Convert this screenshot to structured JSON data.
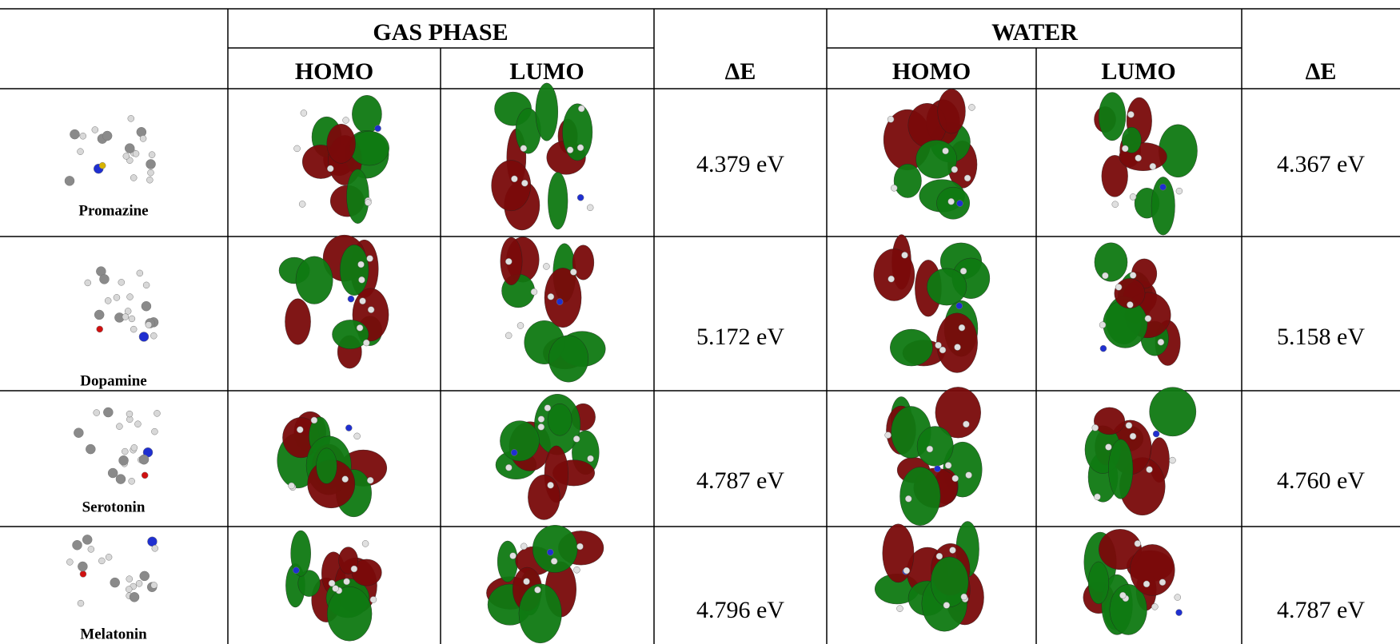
{
  "table": {
    "group_headers": [
      "GAS PHASE",
      "WATER"
    ],
    "column_headers": [
      "HOMO",
      "LUMO",
      "ΔE",
      "HOMO",
      "LUMO",
      "ΔE"
    ],
    "rows": [
      {
        "name": "Promazine",
        "gas_delta_e": "4.379 eV",
        "water_delta_e": "4.367 eV"
      },
      {
        "name": "Dopamine",
        "gas_delta_e": "5.172 eV",
        "water_delta_e": "5.158 eV"
      },
      {
        "name": "Serotonin",
        "gas_delta_e": "4.787 eV",
        "water_delta_e": "4.760 eV"
      },
      {
        "name": "Melatonin",
        "gas_delta_e": "4.796 eV",
        "water_delta_e": "4.787 eV"
      }
    ]
  }
}
